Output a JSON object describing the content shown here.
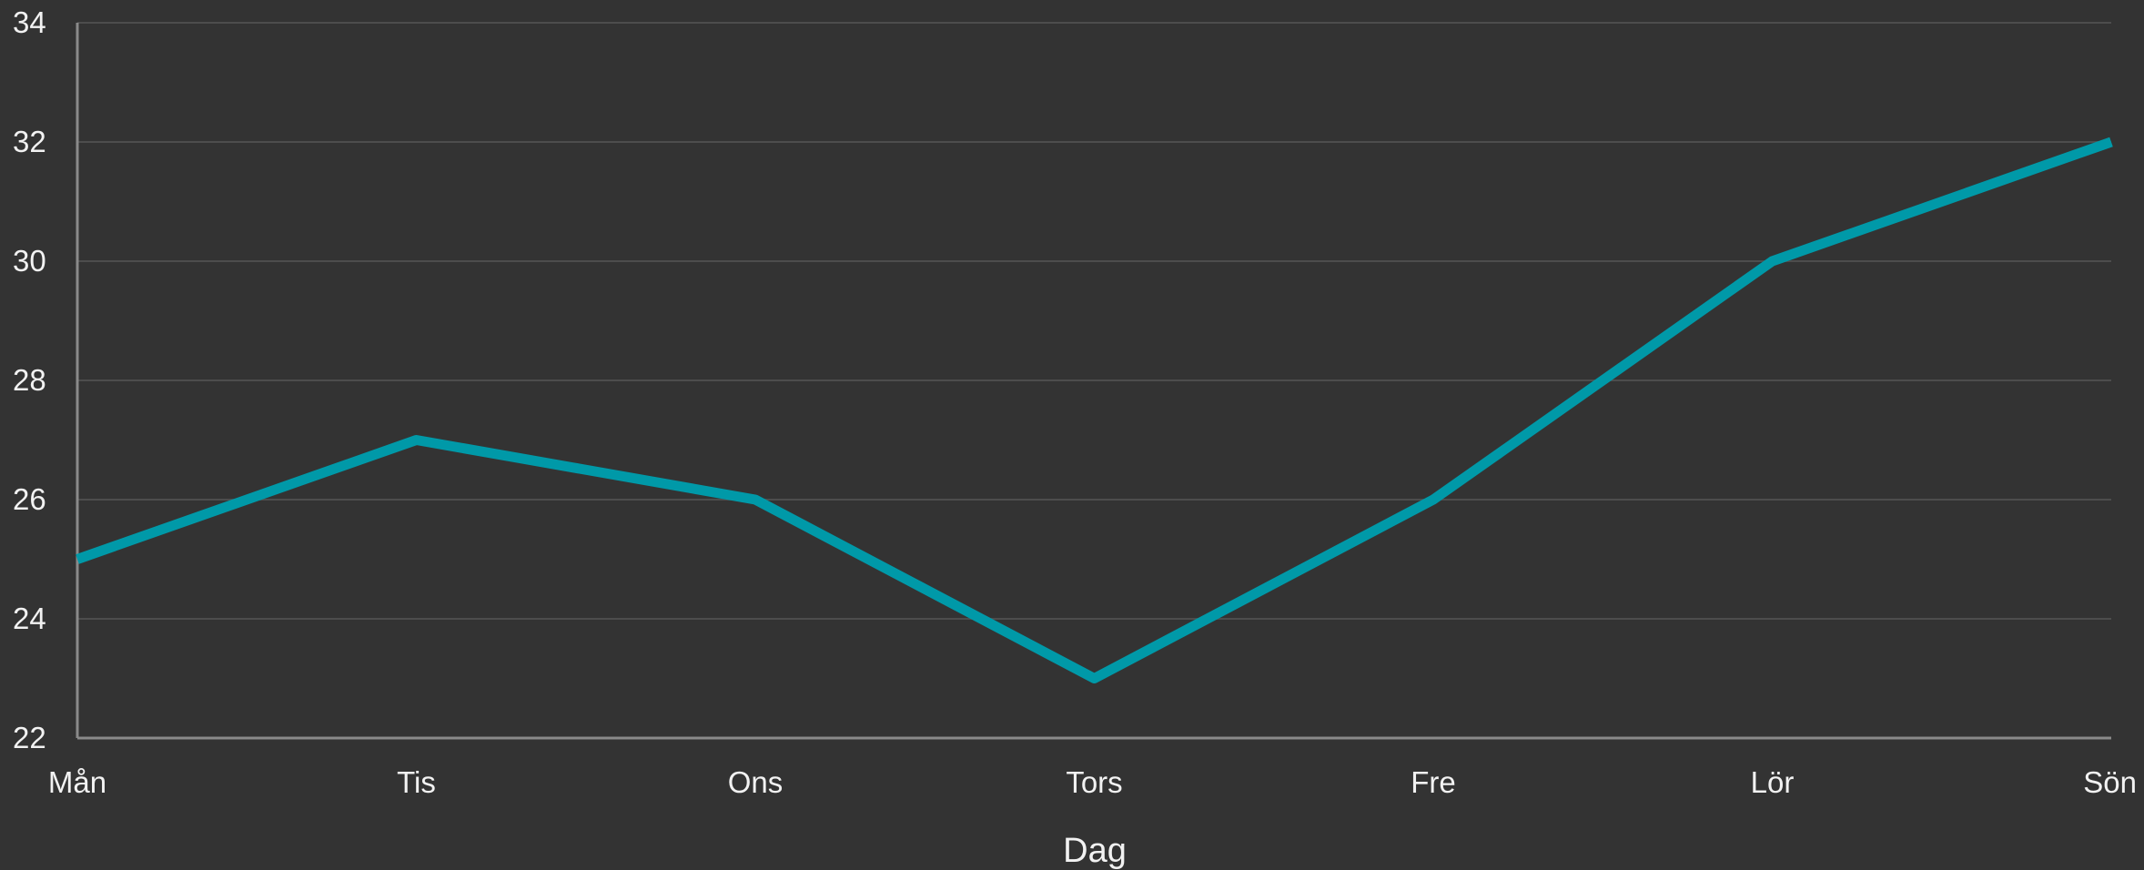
{
  "chart_data": {
    "type": "line",
    "xlabel": "Dag",
    "ylabel": "",
    "categories": [
      "Mån",
      "Tis",
      "Ons",
      "Tors",
      "Fre",
      "Lör",
      "Sön"
    ],
    "series": [
      {
        "values": [
          25,
          27,
          26,
          23,
          26,
          30,
          32
        ]
      }
    ],
    "ylim": [
      22,
      34
    ],
    "yticks": [
      22,
      24,
      26,
      28,
      30,
      32,
      34
    ],
    "grid": true,
    "legend": "none",
    "colors": {
      "background": "#333333",
      "line": "#0099a8",
      "grid": "#4d4d4d",
      "axis": "#8a8a8a",
      "text": "#f2f2f2"
    }
  }
}
